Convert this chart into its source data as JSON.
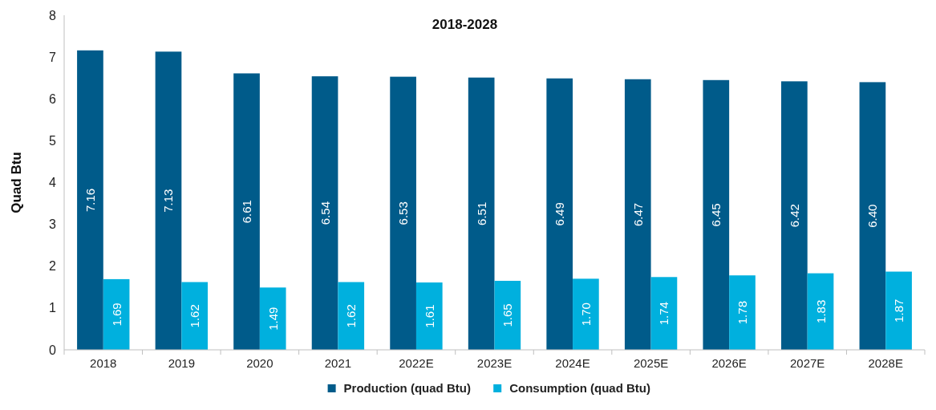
{
  "chart_data": {
    "type": "bar",
    "title": "2018-2028",
    "ylabel": "Quad Btu",
    "categories": [
      "2018",
      "2019",
      "2020",
      "2021",
      "2022E",
      "2023E",
      "2024E",
      "2025E",
      "2026E",
      "2027E",
      "2028E"
    ],
    "series": [
      {
        "name": "Production (quad Btu)",
        "color": "#005b8a",
        "values": [
          7.16,
          7.13,
          6.61,
          6.54,
          6.53,
          6.51,
          6.49,
          6.47,
          6.45,
          6.42,
          6.4
        ],
        "value_labels": [
          "7.16",
          "7.13",
          "6.61",
          "6.54",
          "6.53",
          "6.51",
          "6.49",
          "6.47",
          "6.45",
          "6.42",
          "6.40"
        ]
      },
      {
        "name": "Consumption (quad Btu)",
        "color": "#00b0de",
        "values": [
          1.69,
          1.62,
          1.49,
          1.62,
          1.61,
          1.65,
          1.7,
          1.74,
          1.78,
          1.83,
          1.87
        ],
        "value_labels": [
          "1.69",
          "1.62",
          "1.49",
          "1.62",
          "1.61",
          "1.65",
          "1.70",
          "1.74",
          "1.78",
          "1.83",
          "1.87"
        ]
      }
    ],
    "ylim": [
      0,
      8
    ],
    "yticks": [
      0,
      1,
      2,
      3,
      4,
      5,
      6,
      7,
      8
    ],
    "grid": false,
    "legend": "bottom"
  }
}
